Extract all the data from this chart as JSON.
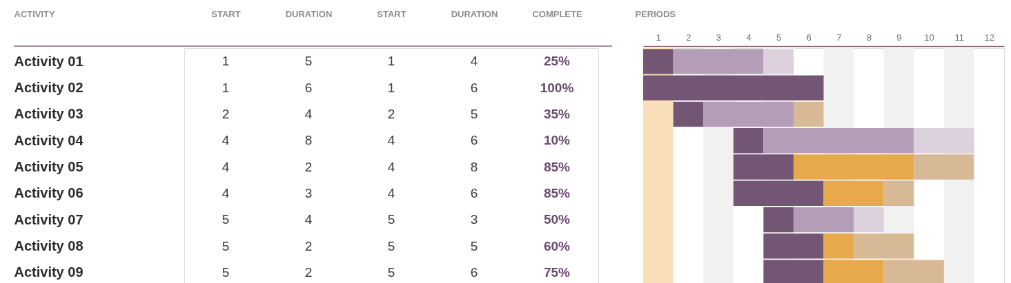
{
  "chart_data": [
    {
      "type": "other",
      "ylabel": "ACTIVITY",
      "categories": [
        "START",
        "DURATION",
        "START",
        "DURATION",
        "COMPLETE"
      ],
      "cell_labels": [
        [
          "1",
          "5",
          "1",
          "4",
          "25%"
        ],
        [
          "1",
          "6",
          "1",
          "6",
          "100%"
        ],
        [
          "2",
          "4",
          "2",
          "5",
          "35%"
        ],
        [
          "4",
          "8",
          "4",
          "6",
          "10%"
        ],
        [
          "4",
          "2",
          "4",
          "8",
          "85%"
        ],
        [
          "4",
          "3",
          "4",
          "6",
          "85%"
        ],
        [
          "5",
          "4",
          "5",
          "3",
          "50%"
        ],
        [
          "5",
          "2",
          "5",
          "5",
          "60%"
        ],
        [
          "5",
          "2",
          "5",
          "6",
          "75%"
        ]
      ]
    },
    {
      "type": "bar",
      "orientation": "horizontal",
      "xlabel": "PERIODS",
      "categories": [
        "Activity 01",
        "Activity 02",
        "Activity 03",
        "Activity 04",
        "Activity 05",
        "Activity 06",
        "Activity 07",
        "Activity 08",
        "Activity 09"
      ],
      "tick_labels": "x",
      "xlim": [
        0.5,
        12.5
      ],
      "xticks": [
        1,
        2,
        3,
        4,
        5,
        6,
        7,
        8,
        9,
        10,
        11,
        12
      ],
      "series": [
        {
          "color": "#735674",
          "base": [
            0.5,
            0.5,
            1.5,
            3.5,
            3.5,
            3.5,
            4.5,
            4.5,
            4.5
          ],
          "values": [
            1,
            6,
            1,
            1,
            2,
            3,
            1,
            2,
            2
          ]
        },
        {
          "color": "#b49db7",
          "base": [
            1.5,
            null,
            2.5,
            4.5,
            null,
            null,
            5.5,
            null,
            null
          ],
          "values": [
            3,
            null,
            3,
            5,
            null,
            null,
            2,
            null,
            null
          ]
        },
        {
          "color": "#dcd0dd",
          "base": [
            4.5,
            null,
            null,
            9.5,
            null,
            null,
            7.5,
            null,
            null
          ],
          "values": [
            1,
            null,
            null,
            2,
            null,
            null,
            1,
            null,
            null
          ]
        },
        {
          "color": "#e8a94c",
          "base": [
            null,
            null,
            null,
            null,
            5.5,
            6.5,
            null,
            6.5,
            6.5
          ],
          "values": [
            null,
            null,
            null,
            null,
            4,
            2,
            null,
            1,
            2
          ]
        },
        {
          "color": "#d8b996",
          "base": [
            null,
            null,
            5.5,
            null,
            9.5,
            8.5,
            null,
            7.5,
            8.5
          ],
          "values": [
            null,
            null,
            1,
            null,
            2,
            1,
            null,
            2,
            2
          ]
        }
      ],
      "bands": [
        {
          "axis": "x",
          "from": 0.5,
          "to": 1.5,
          "color": "#f9dfb9"
        },
        {
          "axis": "x",
          "from": 2.5,
          "to": 3.5,
          "color": "#f1f1f1"
        },
        {
          "axis": "x",
          "from": 4.5,
          "to": 5.5,
          "color": "#f1f1f1"
        },
        {
          "axis": "x",
          "from": 6.5,
          "to": 7.5,
          "color": "#f1f1f1"
        },
        {
          "axis": "x",
          "from": 8.5,
          "to": 9.5,
          "color": "#f1f1f1"
        },
        {
          "axis": "x",
          "from": 10.5,
          "to": 11.5,
          "color": "#f1f1f1"
        }
      ]
    }
  ]
}
